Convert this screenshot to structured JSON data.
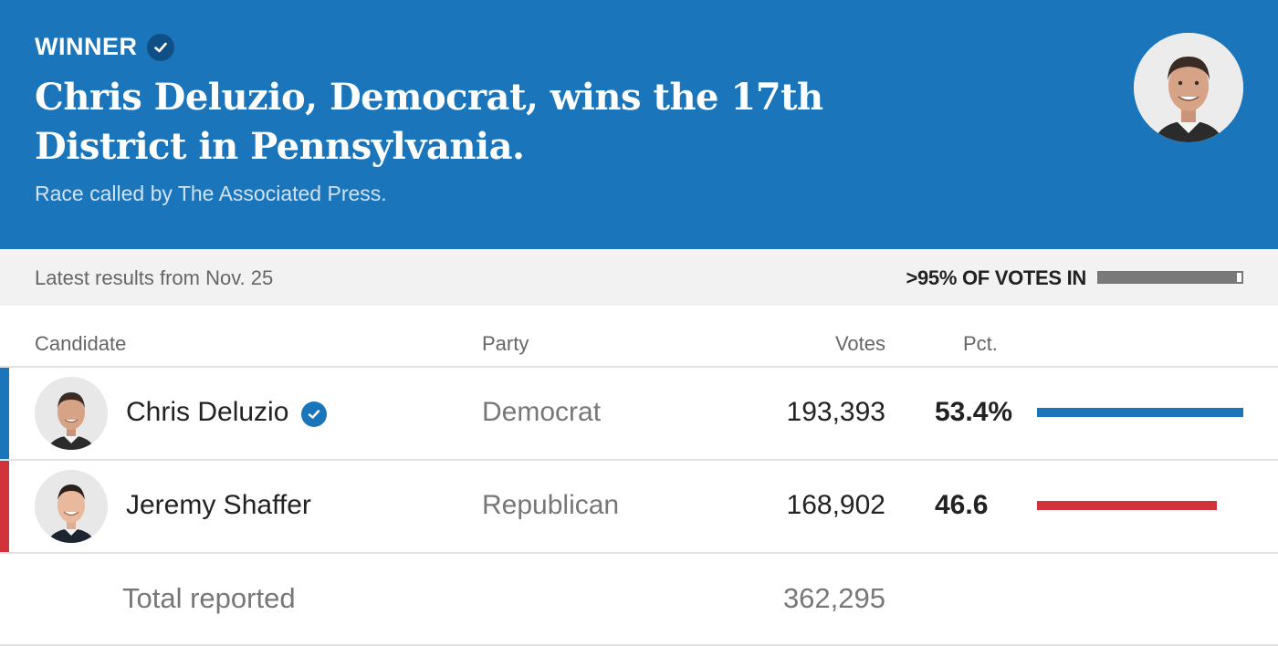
{
  "banner": {
    "winner_label": "WINNER",
    "headline": "Chris Deluzio, Democrat, wins the 17th District in Pennsylvania.",
    "call_note": "Race called by The Associated Press.",
    "background_color": "#1a75bb",
    "winner_icon": "check-circle-icon"
  },
  "status": {
    "latest": "Latest results from Nov. 25",
    "votes_in": ">95% OF VOTES IN",
    "votes_in_fraction": 0.97
  },
  "columns": {
    "candidate": "Candidate",
    "party": "Party",
    "votes": "Votes",
    "pct": "Pct."
  },
  "candidates": [
    {
      "name": "Chris Deluzio",
      "party": "Democrat",
      "votes": "193,393",
      "pct": "53.4%",
      "pct_value": 53.4,
      "winner": true,
      "color": "#1a75bb"
    },
    {
      "name": "Jeremy Shaffer",
      "party": "Republican",
      "votes": "168,902",
      "pct": "46.6",
      "pct_value": 46.6,
      "winner": false,
      "color": "#d0343a"
    }
  ],
  "total": {
    "label": "Total reported",
    "votes": "362,295"
  }
}
